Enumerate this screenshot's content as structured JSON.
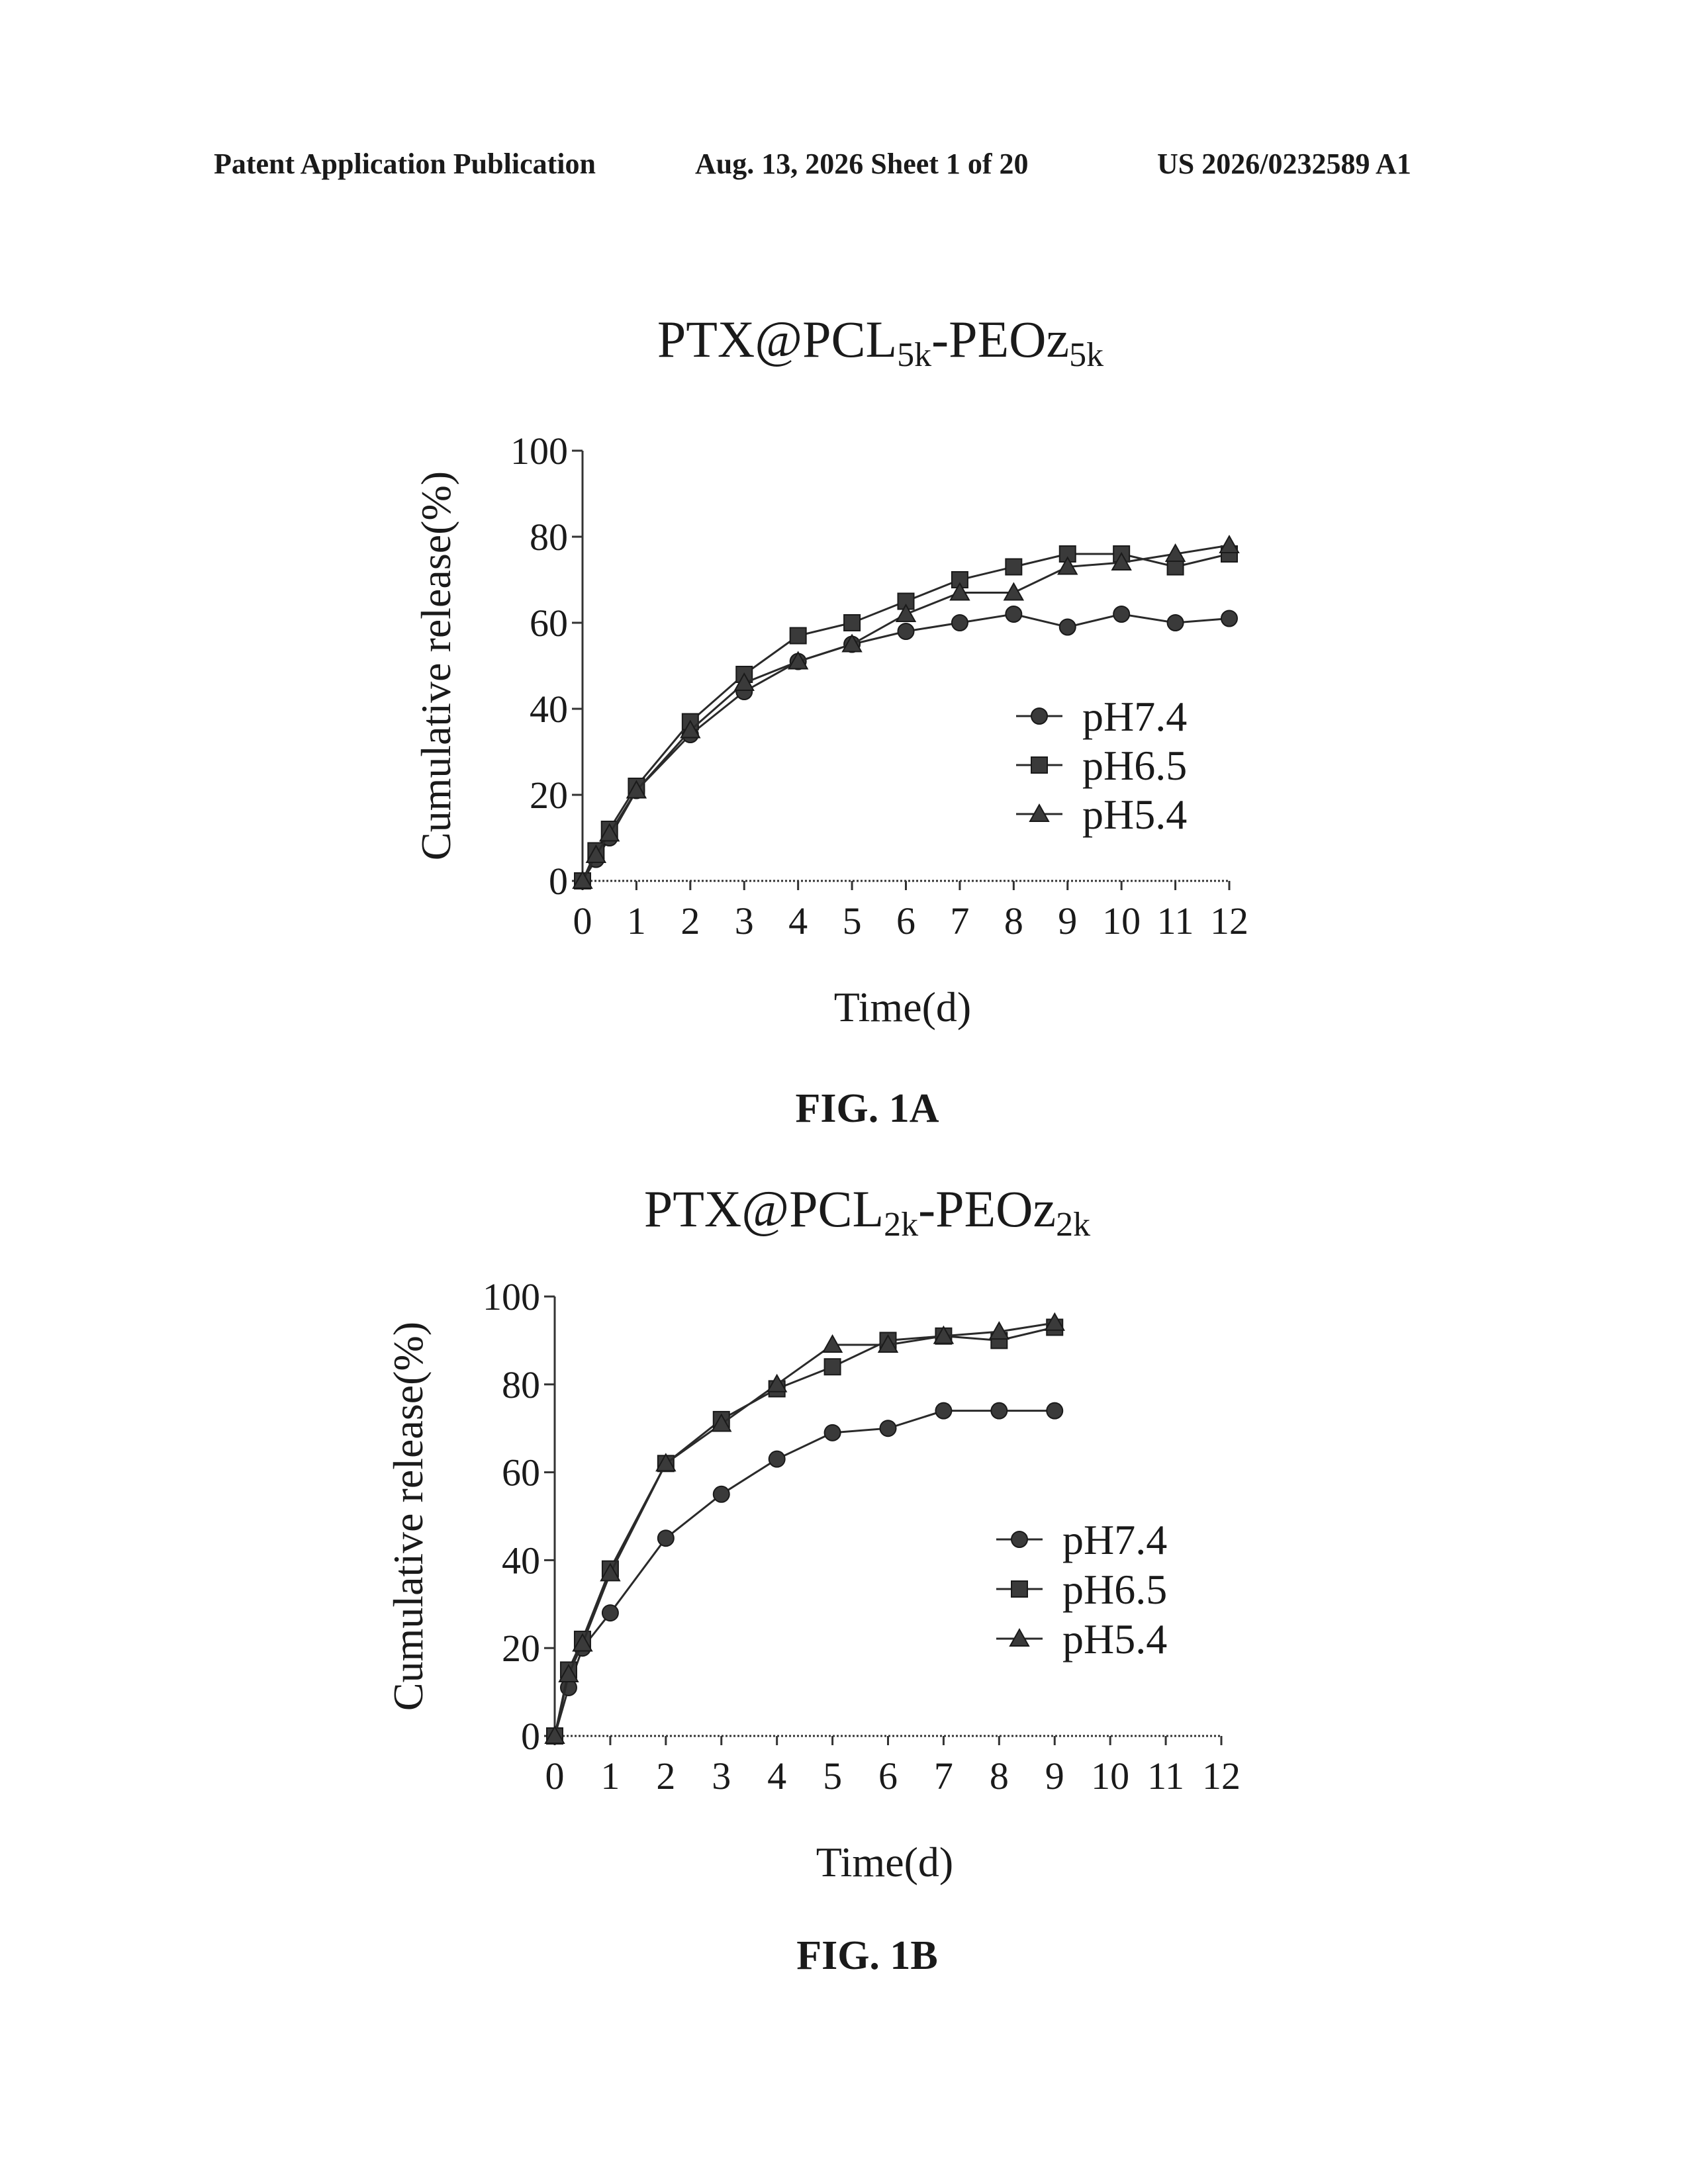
{
  "header": {
    "left": "Patent Application Publication",
    "middle": "Aug. 13, 2026  Sheet 1 of 20",
    "right": "US 2026/0232589 A1"
  },
  "figures": [
    {
      "title_main": "PTX@PCL",
      "title_sub1": "5k",
      "title_mid": "-PEOz",
      "title_sub2": "5k",
      "label": "FIG. 1A"
    },
    {
      "title_main": "PTX@PCL",
      "title_sub1": "2k",
      "title_mid": "-PEOz",
      "title_sub2": "2k",
      "label": "FIG. 1B"
    }
  ],
  "chart_data": [
    {
      "type": "line",
      "title": "PTX@PCL5k-PEOz5k",
      "xlabel": "Time(d)",
      "ylabel": "Cumulative release(%)",
      "xlim": [
        0,
        12
      ],
      "ylim": [
        0,
        100
      ],
      "xticks": [
        0,
        1,
        2,
        3,
        4,
        5,
        6,
        7,
        8,
        9,
        10,
        11,
        12
      ],
      "yticks": [
        0,
        20,
        40,
        60,
        80,
        100
      ],
      "legend": "center-right",
      "series": [
        {
          "name": "pH7.4",
          "marker": "circle",
          "x": [
            0,
            0.25,
            0.5,
            1,
            2,
            3,
            4,
            5,
            6,
            7,
            8,
            9,
            10,
            11,
            12
          ],
          "y": [
            0,
            5,
            10,
            21,
            34,
            44,
            51,
            55,
            58,
            60,
            62,
            59,
            62,
            60,
            61
          ]
        },
        {
          "name": "pH6.5",
          "marker": "square",
          "x": [
            0,
            0.25,
            0.5,
            1,
            2,
            3,
            4,
            5,
            6,
            7,
            8,
            9,
            10,
            11,
            12
          ],
          "y": [
            0,
            7,
            12,
            22,
            37,
            48,
            57,
            60,
            65,
            70,
            73,
            76,
            76,
            73,
            76
          ]
        },
        {
          "name": "pH5.4",
          "marker": "triangle",
          "x": [
            0,
            0.25,
            0.5,
            1,
            2,
            3,
            4,
            5,
            6,
            7,
            8,
            9,
            10,
            11,
            12
          ],
          "y": [
            0,
            6,
            11,
            21,
            35,
            46,
            51,
            55,
            62,
            67,
            67,
            73,
            74,
            76,
            78
          ]
        }
      ]
    },
    {
      "type": "line",
      "title": "PTX@PCL2k-PEOz2k",
      "xlabel": "Time(d)",
      "ylabel": "Cumulative release(%)",
      "xlim": [
        0,
        12
      ],
      "ylim": [
        0,
        100
      ],
      "xticks": [
        0,
        1,
        2,
        3,
        4,
        5,
        6,
        7,
        8,
        9,
        10,
        11,
        12
      ],
      "yticks": [
        0,
        20,
        40,
        60,
        80,
        100
      ],
      "legend": "center-right",
      "series": [
        {
          "name": "pH7.4",
          "marker": "circle",
          "x": [
            0,
            0.25,
            0.5,
            1,
            2,
            3,
            4,
            5,
            6,
            7,
            8,
            9
          ],
          "y": [
            0,
            11,
            20,
            28,
            45,
            55,
            63,
            69,
            70,
            74,
            74,
            74
          ]
        },
        {
          "name": "pH6.5",
          "marker": "square",
          "x": [
            0,
            0.25,
            0.5,
            1,
            2,
            3,
            4,
            5,
            6,
            7,
            8,
            9
          ],
          "y": [
            0,
            15,
            22,
            38,
            62,
            72,
            79,
            84,
            90,
            91,
            90,
            93
          ]
        },
        {
          "name": "pH5.4",
          "marker": "triangle",
          "x": [
            0,
            0.25,
            0.5,
            1,
            2,
            3,
            4,
            5,
            6,
            7,
            8,
            9
          ],
          "y": [
            0,
            14,
            21,
            37,
            62,
            71,
            80,
            89,
            89,
            91,
            92,
            94
          ]
        }
      ]
    }
  ]
}
